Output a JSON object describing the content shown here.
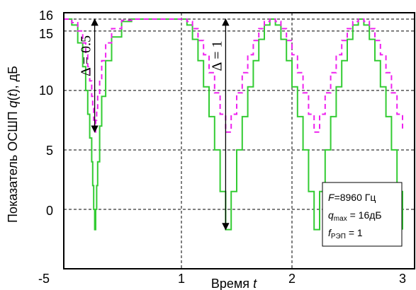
{
  "chart_data": {
    "type": "line",
    "ylabel_parts": [
      "Показатель ОСШП ",
      "q",
      "(",
      "t",
      "), дБ"
    ],
    "xlabel_parts": [
      "Время ",
      "t"
    ],
    "x_ticks": [
      "-5",
      "1",
      "2",
      "3"
    ],
    "y_ticks": [
      "16",
      "15",
      "10",
      "5",
      "0"
    ],
    "ylim": [
      -5,
      16
    ],
    "grid": true,
    "series": [
      {
        "color": "#33cc33",
        "style": "solid",
        "x": [
          -4.9,
          -4.5,
          -4.2,
          -3.95,
          -3.8,
          -3.7,
          -3.6,
          -3.5,
          -3.45,
          -3.4,
          -3.35,
          -3.3,
          -3.25,
          -3.2,
          -3.1,
          -3.0,
          -2.8,
          -2.5,
          -2.0,
          -1.5,
          -1.0,
          -0.5,
          0.0,
          0.5,
          1.0,
          1.05,
          1.1,
          1.15,
          1.2,
          1.25,
          1.3,
          1.35,
          1.4,
          1.45,
          1.5,
          1.55,
          1.6,
          1.65,
          1.7,
          1.75,
          1.8,
          1.85,
          1.9,
          1.95,
          2.0,
          2.05,
          2.1,
          2.15,
          2.2,
          2.25,
          2.3,
          2.35,
          2.4,
          2.45,
          2.5,
          2.55,
          2.6,
          2.65,
          2.7,
          2.75,
          2.8,
          2.85,
          2.9,
          2.95,
          3.0
        ],
        "y": [
          16,
          15.5,
          14,
          12,
          10,
          8,
          6,
          4,
          2,
          0,
          -1.7,
          0,
          2,
          4,
          7,
          9.5,
          12.5,
          14.5,
          15.8,
          16,
          16,
          16,
          16,
          16,
          16,
          15.5,
          14.3,
          12.5,
          10.3,
          7.8,
          5,
          1.5,
          -1.7,
          1.5,
          5,
          7.8,
          10.3,
          12.5,
          14.3,
          15.5,
          16,
          15.5,
          14.3,
          12.5,
          10.3,
          7.8,
          5,
          1.5,
          -1.7,
          1.5,
          5,
          7.8,
          10.3,
          12.5,
          14.3,
          15.5,
          16,
          15.5,
          14.3,
          12.5,
          10.3,
          7.8,
          5,
          1.5,
          -1.7
        ]
      },
      {
        "color": "#ee22ee",
        "style": "dashed",
        "x": [
          -4.9,
          -4.5,
          -4.2,
          -3.95,
          -3.8,
          -3.7,
          -3.6,
          -3.5,
          -3.45,
          -3.4,
          -3.35,
          -3.3,
          -3.25,
          -3.2,
          -3.1,
          -3.0,
          -2.8,
          -2.5,
          -2.0,
          -1.5,
          -1.0,
          -0.5,
          0.0,
          0.5,
          1.0,
          1.05,
          1.1,
          1.15,
          1.2,
          1.25,
          1.3,
          1.35,
          1.4,
          1.45,
          1.5,
          1.55,
          1.6,
          1.65,
          1.7,
          1.75,
          1.8,
          1.85,
          1.9,
          1.95,
          2.0,
          2.05,
          2.1,
          2.15,
          2.2,
          2.25,
          2.3,
          2.35,
          2.4,
          2.45,
          2.5,
          2.55,
          2.6,
          2.65,
          2.7,
          2.75,
          2.8,
          2.85,
          2.9,
          2.95,
          3.0
        ],
        "y": [
          16,
          15.7,
          15,
          14,
          13,
          12,
          10.8,
          9.5,
          8.5,
          7.5,
          6.5,
          7.5,
          8.5,
          9.5,
          11,
          12.5,
          14,
          15.2,
          15.9,
          16,
          16,
          16,
          16,
          16,
          16,
          15.8,
          15.2,
          14.2,
          13,
          11.5,
          9.8,
          8,
          6.5,
          8,
          9.8,
          11.5,
          13,
          14.2,
          15.2,
          15.8,
          16,
          15.8,
          15.2,
          14.2,
          13,
          11.5,
          9.8,
          8,
          6.5,
          8,
          9.8,
          11.5,
          13,
          14.2,
          15.2,
          15.8,
          16,
          15.8,
          15.2,
          14.2,
          13,
          11.5,
          9.8,
          8,
          6.5
        ]
      }
    ],
    "annotations": [
      {
        "label": "Δ = 0.5",
        "x": -3.35,
        "y_top": 16,
        "y_bottom": 6.5
      },
      {
        "label": "Δ = 1",
        "x": 1.4,
        "y_top": 16,
        "y_bottom": -1.7
      }
    ],
    "legend": {
      "position": "bottom-right",
      "line1": {
        "var": "F",
        "text": "=8960 Гц"
      },
      "line2": {
        "var": "q",
        "sub": "max",
        "text": " = 16дБ"
      },
      "line3": {
        "var": "f",
        "sub": "РЭП",
        "text": " = 1"
      }
    }
  }
}
